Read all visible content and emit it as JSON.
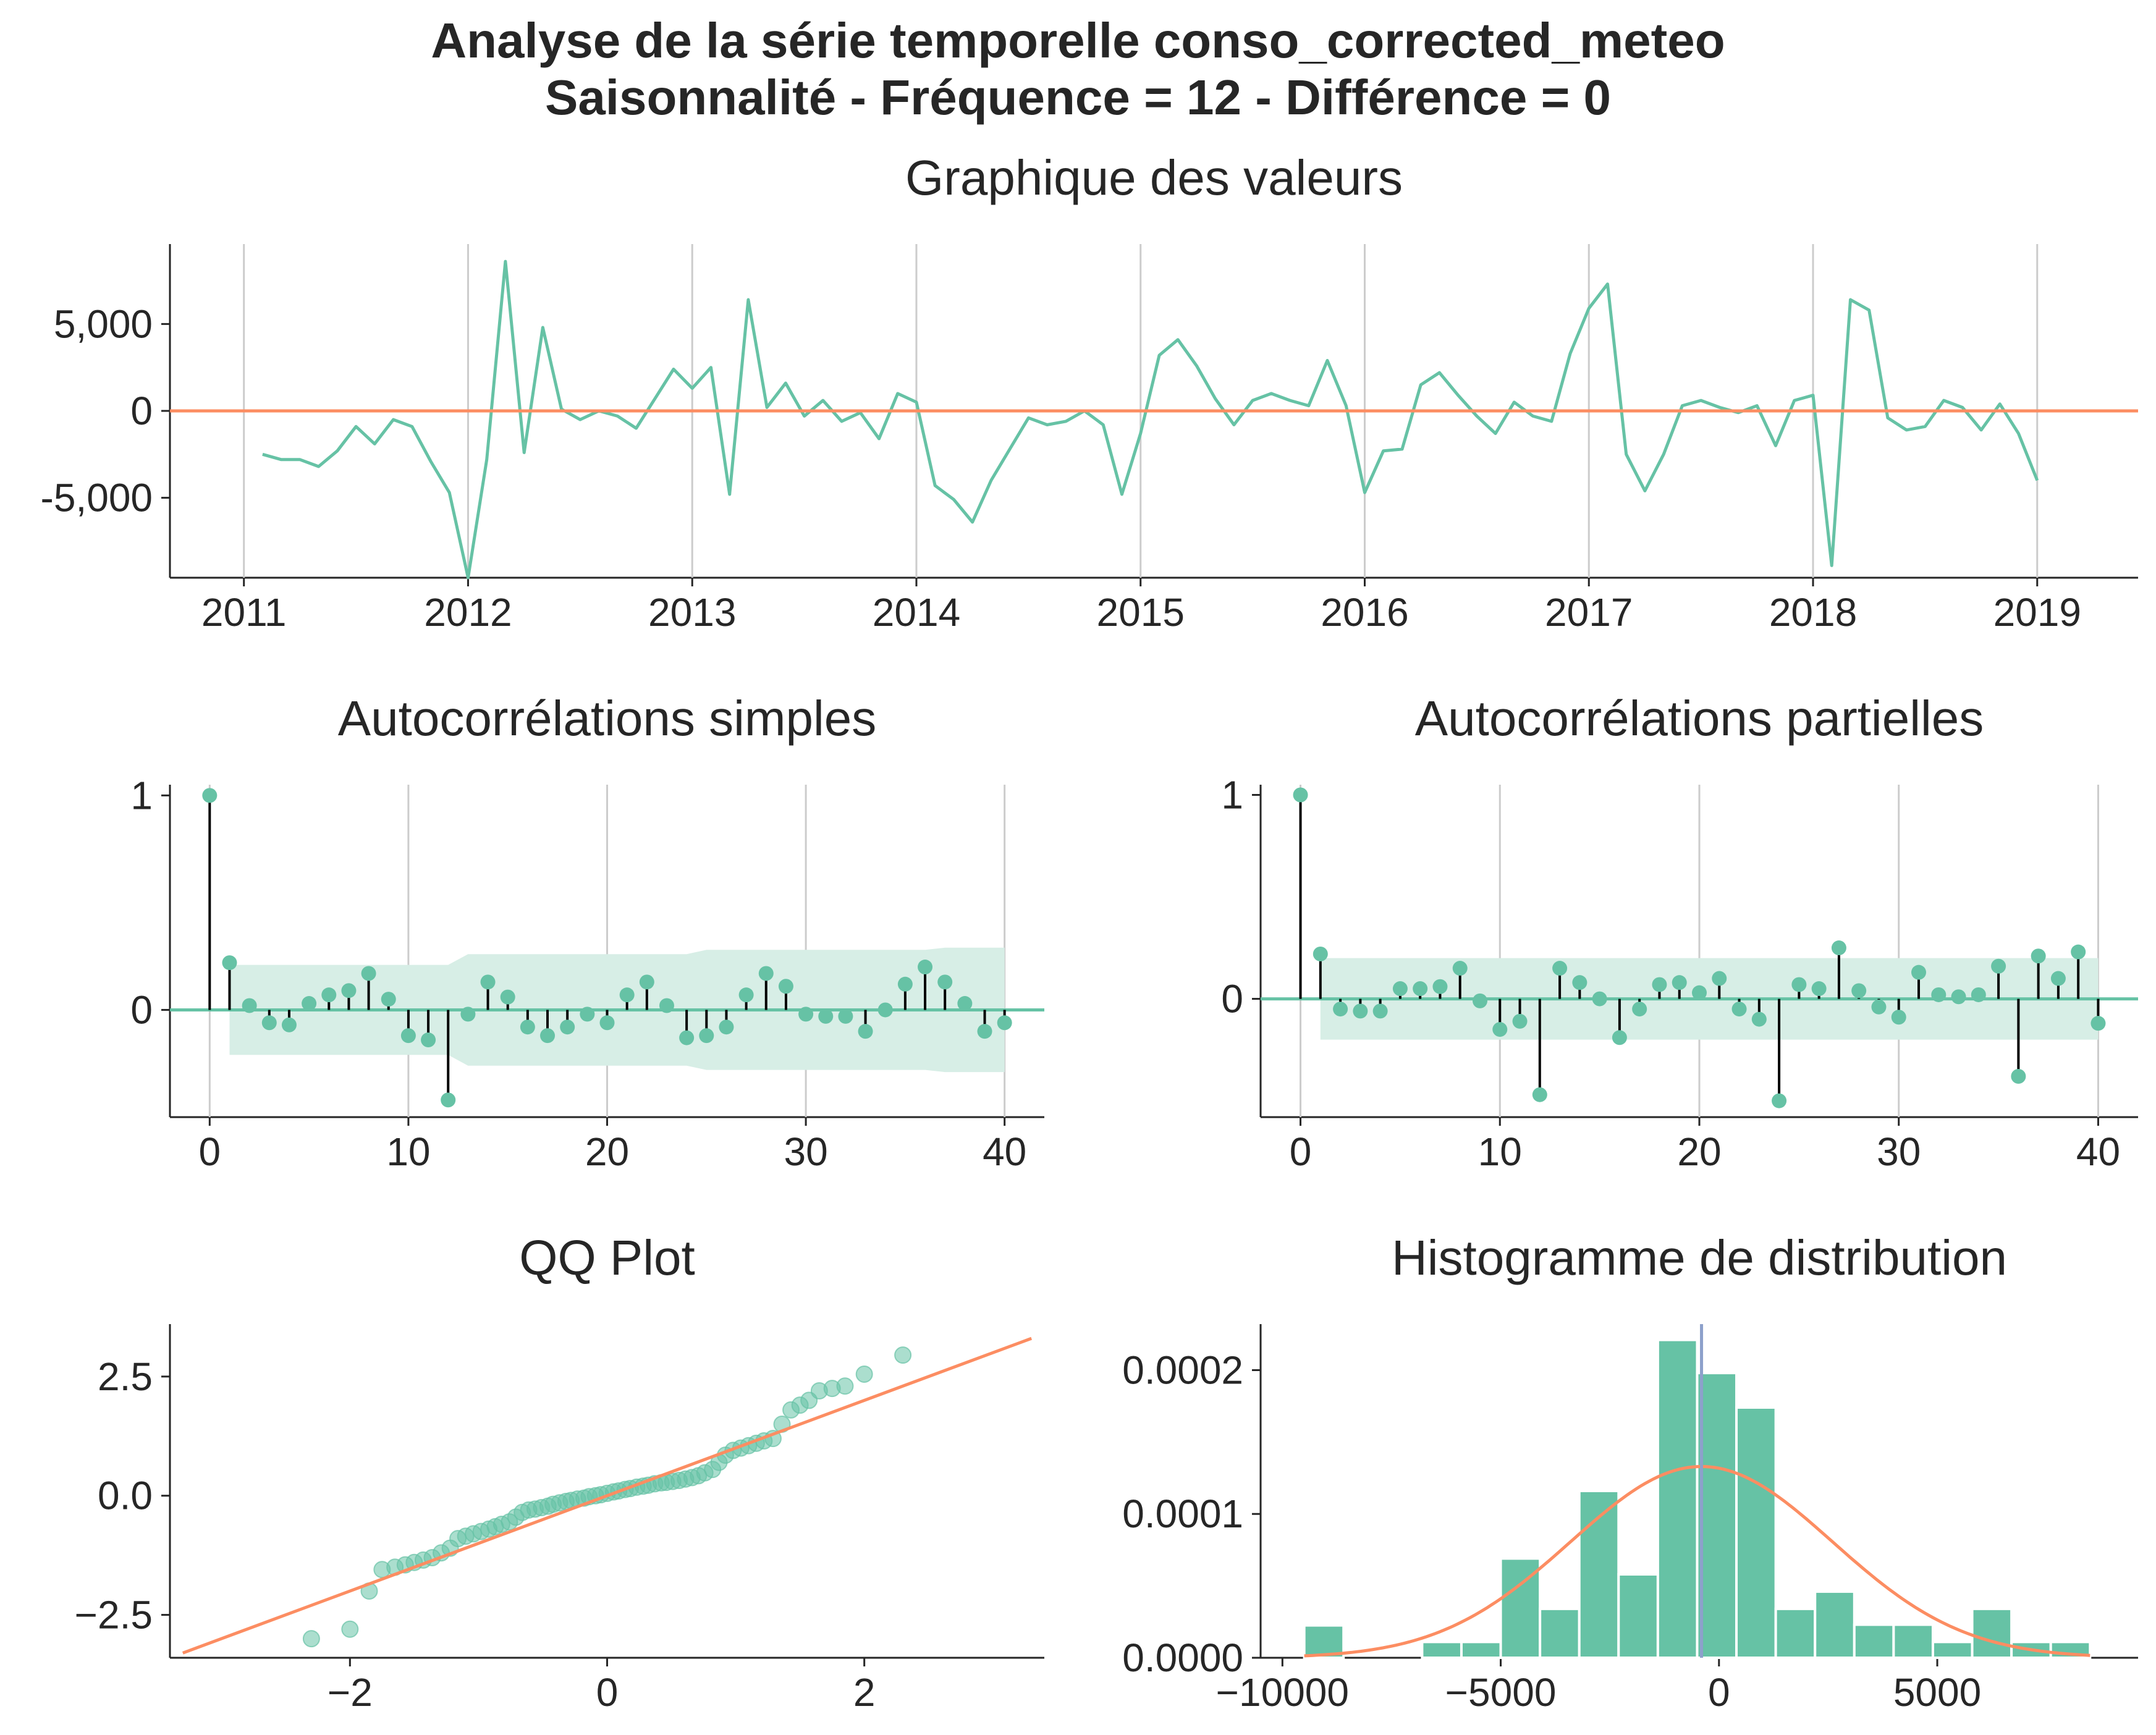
{
  "figure": {
    "title_line1": "Analyse de la série temporelle conso_corrected_meteo",
    "title_line2": "Saisonnalité - Fréquence = 12 - Différence = 0"
  },
  "colors": {
    "series": "#66c2a5",
    "reference": "#fc8d62",
    "stem": "#000000",
    "vline": "#8da0cb",
    "grid": "#cccccc",
    "axis": "#262626",
    "band": "#d7eee6"
  },
  "chart_data": [
    {
      "id": "values",
      "type": "line",
      "title": "Graphique des valeurs",
      "xlabel": "",
      "ylabel": "",
      "x_start": "2011-02",
      "x_step_months": 1,
      "xlim": [
        2010.67,
        2019.45
      ],
      "ylim": [
        -9600,
        9600
      ],
      "xticks": [
        2011,
        2012,
        2013,
        2014,
        2015,
        2016,
        2017,
        2018,
        2019
      ],
      "xtick_labels": [
        "2011",
        "2012",
        "2013",
        "2014",
        "2015",
        "2016",
        "2017",
        "2018",
        "2019"
      ],
      "yticks": [
        -5000,
        0,
        5000
      ],
      "ytick_labels": [
        "-5,000",
        "0",
        "5,000"
      ],
      "grid": "vertical",
      "reference_line": 0,
      "values": [
        -2500,
        -2800,
        -2800,
        -3200,
        -2300,
        -900,
        -1900,
        -500,
        -900,
        -2900,
        -4700,
        -9600,
        -2800,
        8600,
        -2400,
        4800,
        100,
        -500,
        0,
        -300,
        -1000,
        700,
        2400,
        1300,
        2500,
        -4800,
        6400,
        200,
        1600,
        -300,
        600,
        -600,
        -100,
        -1600,
        1000,
        500,
        -4300,
        -5100,
        -6400,
        -4000,
        -2200,
        -400,
        -800,
        -600,
        0,
        -800,
        -4800,
        -1300,
        3200,
        4100,
        2600,
        700,
        -800,
        600,
        1000,
        600,
        300,
        2900,
        300,
        -4700,
        -2300,
        -2200,
        1500,
        2200,
        900,
        -300,
        -1300,
        500,
        -300,
        -600,
        3300,
        5900,
        7300,
        -2500,
        -4600,
        -2500,
        300,
        600,
        200,
        -100,
        300,
        -2000,
        600,
        900,
        -8900,
        6400,
        5800,
        -400,
        -1100,
        -900,
        600,
        200,
        -1100,
        400,
        -1300,
        -4000
      ]
    },
    {
      "id": "acf",
      "type": "stem",
      "title": "Autocorrélations simples",
      "xlabel": "",
      "ylabel": "",
      "xlim": [
        -2,
        42
      ],
      "ylim": [
        -0.5,
        1.05
      ],
      "xticks": [
        0,
        10,
        20,
        30,
        40
      ],
      "xtick_labels": [
        "0",
        "10",
        "20",
        "30",
        "40"
      ],
      "yticks": [
        0,
        1
      ],
      "ytick_labels": [
        "0",
        "1"
      ],
      "grid": "vertical",
      "lags": [
        0,
        1,
        2,
        3,
        4,
        5,
        6,
        7,
        8,
        9,
        10,
        11,
        12,
        13,
        14,
        15,
        16,
        17,
        18,
        19,
        20,
        21,
        22,
        23,
        24,
        25,
        26,
        27,
        28,
        29,
        30,
        31,
        32,
        33,
        34,
        35,
        36,
        37,
        38,
        39,
        40
      ],
      "values": [
        1.0,
        0.22,
        0.02,
        -0.06,
        -0.07,
        0.03,
        0.07,
        0.09,
        0.17,
        0.05,
        -0.12,
        -0.14,
        -0.42,
        -0.02,
        0.13,
        0.06,
        -0.08,
        -0.12,
        -0.08,
        -0.02,
        -0.06,
        0.07,
        0.13,
        0.02,
        -0.13,
        -0.12,
        -0.08,
        0.07,
        0.17,
        0.11,
        -0.02,
        -0.03,
        -0.03,
        -0.1,
        0.0,
        0.12,
        0.2,
        0.13,
        0.03,
        -0.1,
        -0.06
      ],
      "confidence_upper": [
        0.21,
        0.21,
        0.21,
        0.21,
        0.21,
        0.21,
        0.21,
        0.21,
        0.21,
        0.21,
        0.21,
        0.21,
        0.26,
        0.26,
        0.26,
        0.26,
        0.26,
        0.26,
        0.26,
        0.26,
        0.26,
        0.26,
        0.26,
        0.26,
        0.28,
        0.28,
        0.28,
        0.28,
        0.28,
        0.28,
        0.28,
        0.28,
        0.28,
        0.28,
        0.28,
        0.28,
        0.29,
        0.29,
        0.29,
        0.29
      ],
      "confidence_lags": [
        1,
        2,
        3,
        4,
        5,
        6,
        7,
        8,
        9,
        10,
        11,
        12,
        13,
        14,
        15,
        16,
        17,
        18,
        19,
        20,
        21,
        22,
        23,
        24,
        25,
        26,
        27,
        28,
        29,
        30,
        31,
        32,
        33,
        34,
        35,
        36,
        37,
        38,
        39,
        40
      ]
    },
    {
      "id": "pacf",
      "type": "stem",
      "title": "Autocorrélations partielles",
      "xlabel": "",
      "ylabel": "",
      "xlim": [
        -2,
        42
      ],
      "ylim": [
        -0.58,
        1.05
      ],
      "xticks": [
        0,
        10,
        20,
        30,
        40
      ],
      "xtick_labels": [
        "0",
        "10",
        "20",
        "30",
        "40"
      ],
      "yticks": [
        0,
        1
      ],
      "ytick_labels": [
        "0",
        "1"
      ],
      "grid": "vertical",
      "lags": [
        0,
        1,
        2,
        3,
        4,
        5,
        6,
        7,
        8,
        9,
        10,
        11,
        12,
        13,
        14,
        15,
        16,
        17,
        18,
        19,
        20,
        21,
        22,
        23,
        24,
        25,
        26,
        27,
        28,
        29,
        30,
        31,
        32,
        33,
        34,
        35,
        36,
        37,
        38,
        39,
        40
      ],
      "values": [
        1.0,
        0.22,
        -0.05,
        -0.06,
        -0.06,
        0.05,
        0.05,
        0.06,
        0.15,
        -0.01,
        -0.15,
        -0.11,
        -0.47,
        0.15,
        0.08,
        0.0,
        -0.19,
        -0.05,
        0.07,
        0.08,
        0.03,
        0.1,
        -0.05,
        -0.1,
        -0.5,
        0.07,
        0.05,
        0.25,
        0.04,
        -0.04,
        -0.09,
        0.13,
        0.02,
        0.01,
        0.02,
        0.16,
        -0.38,
        0.21,
        0.1,
        0.23,
        -0.12
      ],
      "confidence_upper": [
        0.2,
        0.2,
        0.2,
        0.2,
        0.2,
        0.2,
        0.2,
        0.2,
        0.2,
        0.2,
        0.2,
        0.2,
        0.2,
        0.2,
        0.2,
        0.2,
        0.2,
        0.2,
        0.2,
        0.2,
        0.2,
        0.2,
        0.2,
        0.2,
        0.2,
        0.2,
        0.2,
        0.2,
        0.2,
        0.2,
        0.2,
        0.2,
        0.2,
        0.2,
        0.2,
        0.2,
        0.2,
        0.2,
        0.2,
        0.2
      ],
      "confidence_lags": [
        1,
        2,
        3,
        4,
        5,
        6,
        7,
        8,
        9,
        10,
        11,
        12,
        13,
        14,
        15,
        16,
        17,
        18,
        19,
        20,
        21,
        22,
        23,
        24,
        25,
        26,
        27,
        28,
        29,
        30,
        31,
        32,
        33,
        34,
        35,
        36,
        37,
        38,
        39,
        40
      ]
    },
    {
      "id": "qq",
      "type": "scatter",
      "title": "QQ Plot",
      "xlabel": "",
      "ylabel": "",
      "xlim": [
        -3.4,
        3.4
      ],
      "ylim": [
        -3.4,
        3.6
      ],
      "xticks": [
        -2,
        0,
        2
      ],
      "xtick_labels": [
        "−2",
        "0",
        "2"
      ],
      "yticks": [
        -2.5,
        0.0,
        2.5
      ],
      "ytick_labels": [
        "−2.5",
        "0.0",
        "2.5"
      ],
      "grid": "none",
      "reference_line": [
        [
          -3.3,
          -3.3
        ],
        [
          3.3,
          3.3
        ]
      ],
      "x": [
        -2.3,
        -2.0,
        -1.85,
        -1.75,
        -1.65,
        -1.57,
        -1.5,
        -1.43,
        -1.36,
        -1.29,
        -1.22,
        -1.16,
        -1.1,
        -1.04,
        -0.98,
        -0.92,
        -0.87,
        -0.82,
        -0.76,
        -0.71,
        -0.66,
        -0.61,
        -0.56,
        -0.51,
        -0.46,
        -0.42,
        -0.37,
        -0.32,
        -0.28,
        -0.23,
        -0.18,
        -0.14,
        -0.09,
        -0.05,
        0.0,
        0.05,
        0.09,
        0.14,
        0.18,
        0.23,
        0.28,
        0.32,
        0.37,
        0.42,
        0.46,
        0.51,
        0.56,
        0.61,
        0.66,
        0.71,
        0.76,
        0.82,
        0.87,
        0.92,
        0.98,
        1.04,
        1.1,
        1.16,
        1.22,
        1.29,
        1.36,
        1.43,
        1.5,
        1.57,
        1.65,
        1.75,
        1.85,
        2.0,
        2.3
      ],
      "y": [
        -3.0,
        -2.8,
        -2.0,
        -1.55,
        -1.5,
        -1.45,
        -1.4,
        -1.35,
        -1.3,
        -1.2,
        -1.1,
        -0.9,
        -0.85,
        -0.8,
        -0.75,
        -0.7,
        -0.65,
        -0.6,
        -0.55,
        -0.45,
        -0.35,
        -0.3,
        -0.28,
        -0.25,
        -0.22,
        -0.18,
        -0.15,
        -0.12,
        -0.1,
        -0.07,
        -0.05,
        -0.02,
        0.0,
        0.02,
        0.05,
        0.08,
        0.1,
        0.13,
        0.15,
        0.18,
        0.2,
        0.22,
        0.25,
        0.27,
        0.28,
        0.3,
        0.32,
        0.35,
        0.38,
        0.42,
        0.48,
        0.55,
        0.7,
        0.85,
        0.95,
        1.0,
        1.05,
        1.1,
        1.15,
        1.2,
        1.5,
        1.8,
        1.9,
        2.0,
        2.2,
        2.25,
        2.3,
        2.55,
        2.95
      ]
    },
    {
      "id": "hist",
      "type": "histogram",
      "title": "Histogramme de distribution",
      "xlabel": "",
      "ylabel": "",
      "xlim": [
        -10500,
        9600
      ],
      "ylim": [
        0,
        0.000232
      ],
      "xticks": [
        -10000,
        -5000,
        0,
        5000
      ],
      "xtick_labels": [
        "−10000",
        "−5000",
        "0",
        "5000"
      ],
      "yticks": [
        0.0,
        0.0001,
        0.0002
      ],
      "ytick_labels": [
        "0.0000",
        "0.0001",
        "0.0002"
      ],
      "grid": "none",
      "bin_edges": [
        -9500,
        -8600,
        -7700,
        -6800,
        -5900,
        -5000,
        -4100,
        -3200,
        -2300,
        -1400,
        -500,
        400,
        1300,
        2200,
        3100,
        4000,
        4900,
        5800,
        6700,
        7600,
        8500
      ],
      "densities": [
        2.25e-05,
        0.0,
        0.0,
        1.1e-05,
        1.1e-05,
        6.9e-05,
        3.4e-05,
        0.000116,
        5.8e-05,
        0.000221,
        0.000198,
        0.000174,
        3.4e-05,
        4.6e-05,
        2.3e-05,
        2.3e-05,
        1.1e-05,
        3.4e-05,
        1.1e-05,
        1.1e-05
      ],
      "normal_fit": {
        "mean": -400,
        "std": 3000
      },
      "mean_line": -400
    }
  ]
}
